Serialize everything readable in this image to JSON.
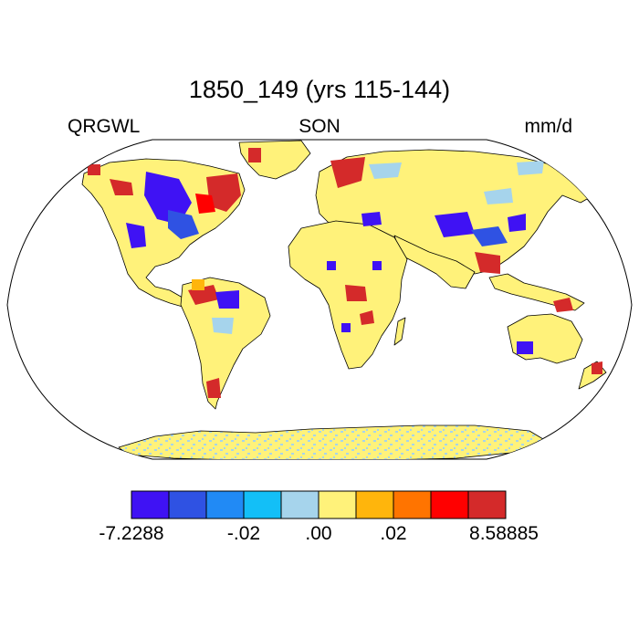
{
  "title": "1850_149 (yrs 115-144)",
  "subtitle_left": "QRGWL",
  "subtitle_center": "SON",
  "subtitle_right": "mm/d",
  "map": {
    "projection": "robinson",
    "ocean_color": "#ffffff",
    "coastline_color": "#000000"
  },
  "colorbar": {
    "colors": [
      "#3f12f4",
      "#2f52e3",
      "#218af5",
      "#13bff7",
      "#a6d4ec",
      "#fff27a",
      "#ffb50c",
      "#ff7400",
      "#ff0000",
      "#d42a2a"
    ],
    "labels": [
      "-7.2288",
      "-.02",
      ".00",
      ".02",
      "8.58885"
    ]
  }
}
